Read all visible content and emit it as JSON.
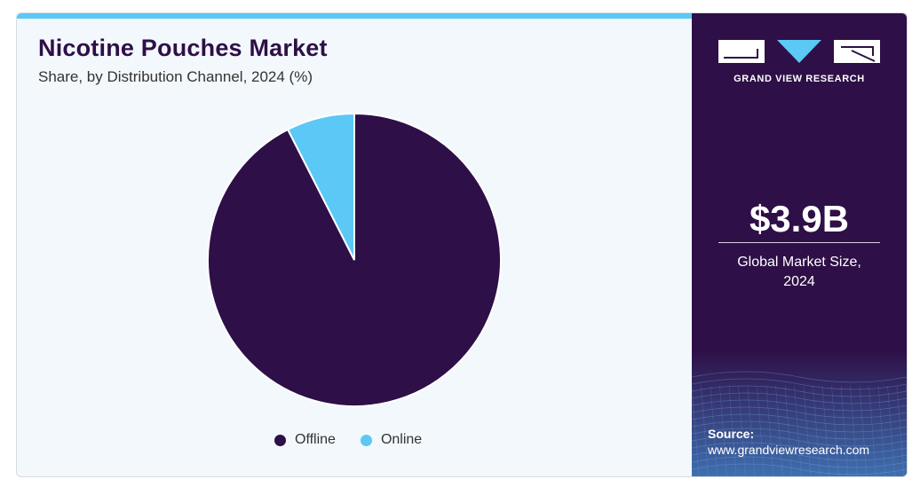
{
  "header": {
    "title": "Nicotine Pouches Market",
    "subtitle": "Share, by Distribution Channel, 2024 (%)"
  },
  "chart_data": {
    "type": "pie",
    "title": "Nicotine Pouches Market",
    "subtitle": "Share, by Distribution Channel, 2024 (%)",
    "categories": [
      "Offline",
      "Online"
    ],
    "values": [
      92.5,
      7.5
    ],
    "colors": [
      "#2e0f47",
      "#5bc8f5"
    ],
    "legend_position": "bottom"
  },
  "side_panel": {
    "brand": "GRAND VIEW RESEARCH",
    "market_size": "$3.9B",
    "market_label_line1": "Global Market Size,",
    "market_label_line2": "2024",
    "source_label": "Source:",
    "source_url": "www.grandviewresearch.com"
  },
  "colors": {
    "accent": "#5bc8f5",
    "brand_dark": "#2e0f47",
    "background": "#f3f8fc"
  }
}
